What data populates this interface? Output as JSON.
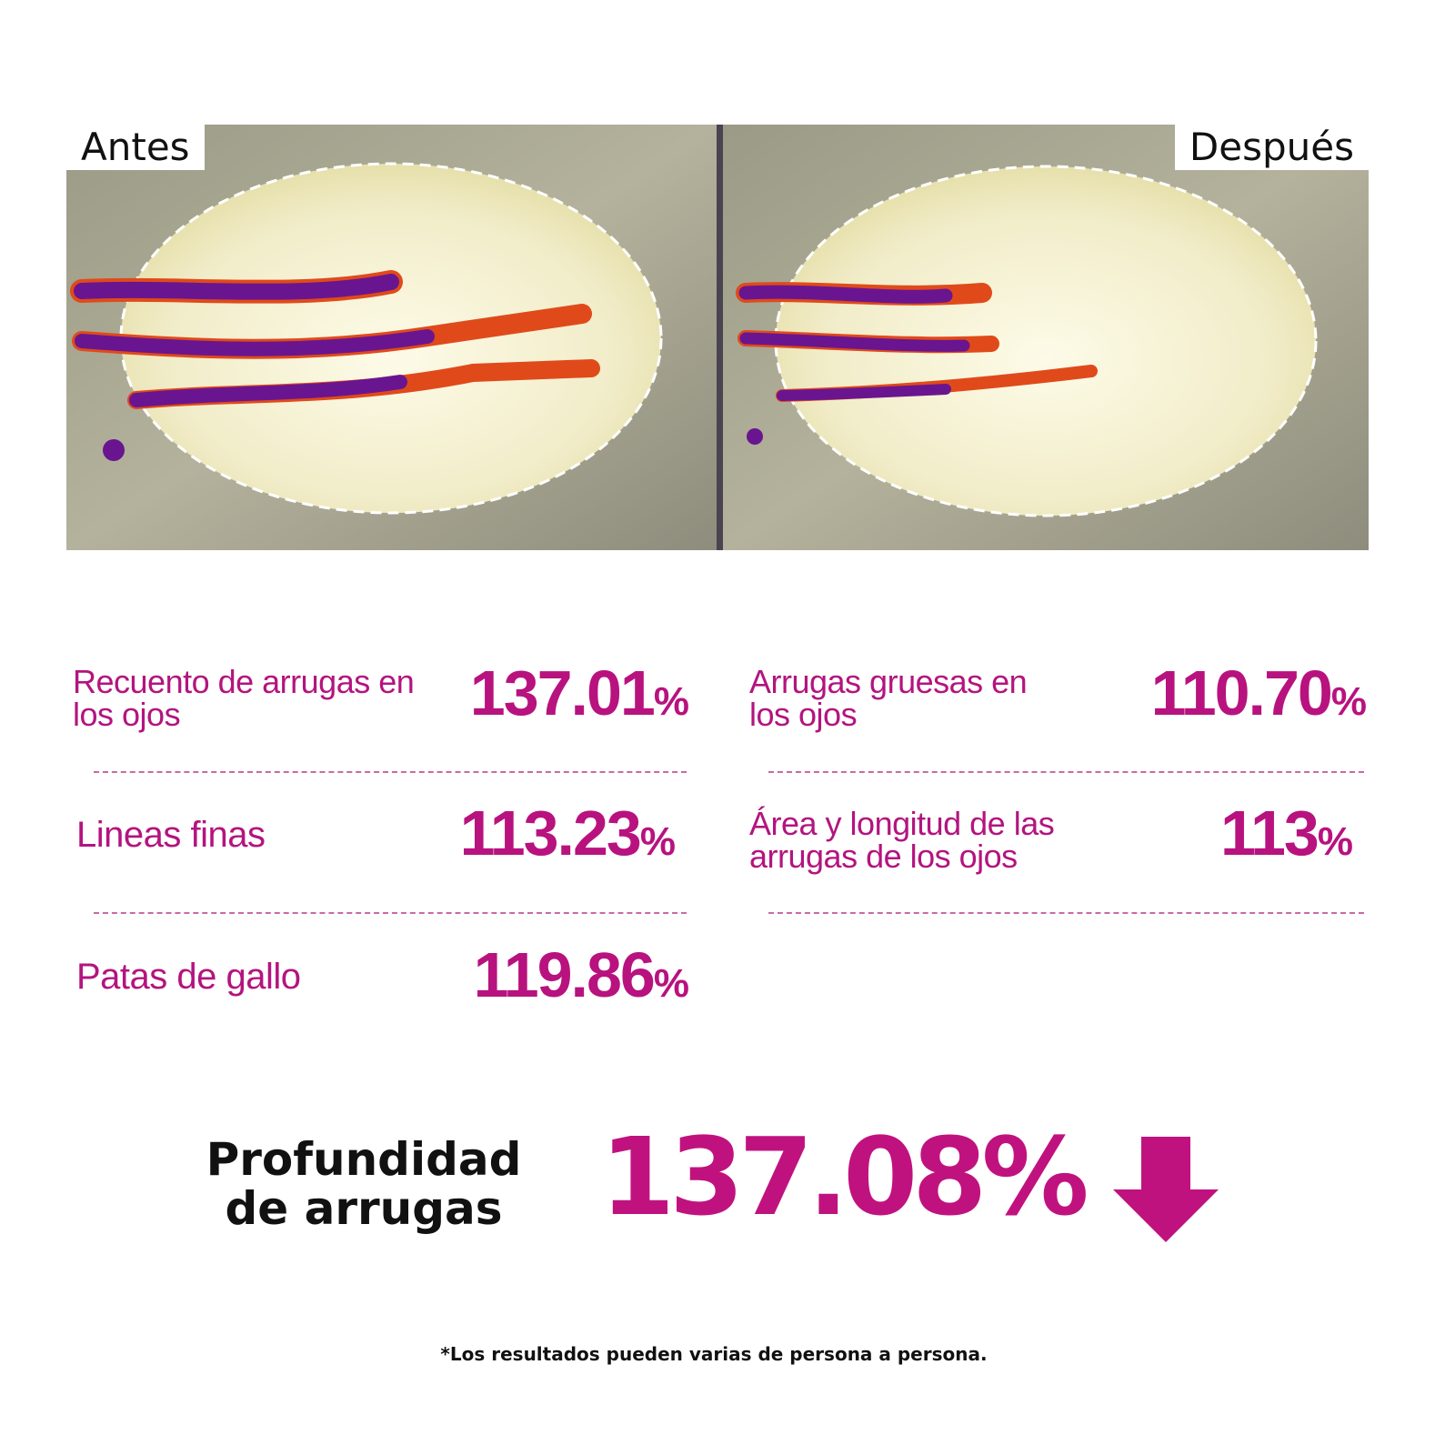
{
  "comparison": {
    "before_label": "Antes",
    "after_label": "Después"
  },
  "metrics": [
    {
      "label": "Recuento de arrugas en los ojos",
      "number": "137.01",
      "unit": "%"
    },
    {
      "label": "Arrugas gruesas en los ojos",
      "number": "110.70",
      "unit": "%"
    },
    {
      "label": "Lineas finas",
      "number": "113.23",
      "unit": "%"
    },
    {
      "label": "Área y longitud de las arrugas de los ojos",
      "number": "113",
      "unit": "%"
    },
    {
      "label": "Patas de gallo",
      "number": "119.86",
      "unit": "%"
    }
  ],
  "highlight": {
    "label_line1": "Profundidad",
    "label_line2": "de arrugas",
    "value": "137.08%"
  },
  "footnote": "*Los resultados pueden varias de persona a persona."
}
